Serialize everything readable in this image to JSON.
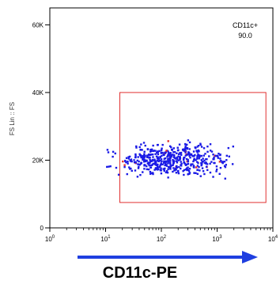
{
  "chart_data": {
    "type": "scatter",
    "title": "",
    "ylabel": "FS Lin :: FS",
    "xlabel": "CD11c-PE",
    "x_scale": "log",
    "xlim": [
      1,
      10000
    ],
    "ylim": [
      0,
      65000
    ],
    "x_ticks": [
      {
        "value": 1,
        "base": "10",
        "exp": "0"
      },
      {
        "value": 10,
        "base": "10",
        "exp": "1"
      },
      {
        "value": 100,
        "base": "10",
        "exp": "2"
      },
      {
        "value": 1000,
        "base": "10",
        "exp": "3"
      },
      {
        "value": 10000,
        "base": "10",
        "exp": "4"
      }
    ],
    "y_ticks": [
      {
        "value": 0,
        "label": "0"
      },
      {
        "value": 20000,
        "label": "20K"
      },
      {
        "value": 40000,
        "label": "40K"
      },
      {
        "value": 60000,
        "label": "60K"
      }
    ],
    "gate": {
      "name": "CD11c+",
      "percent": "90.0",
      "x_range": [
        18,
        7500
      ],
      "y_range": [
        7500,
        40000
      ],
      "color": "#e03030"
    },
    "population": {
      "color": "#1a1ae6",
      "highlight_color": "#e03030",
      "x_range": [
        3,
        6000
      ],
      "y_center": 20000,
      "y_spread": 4200,
      "count": 520
    },
    "arrow_color": "#1f3fe0",
    "grid": false
  }
}
